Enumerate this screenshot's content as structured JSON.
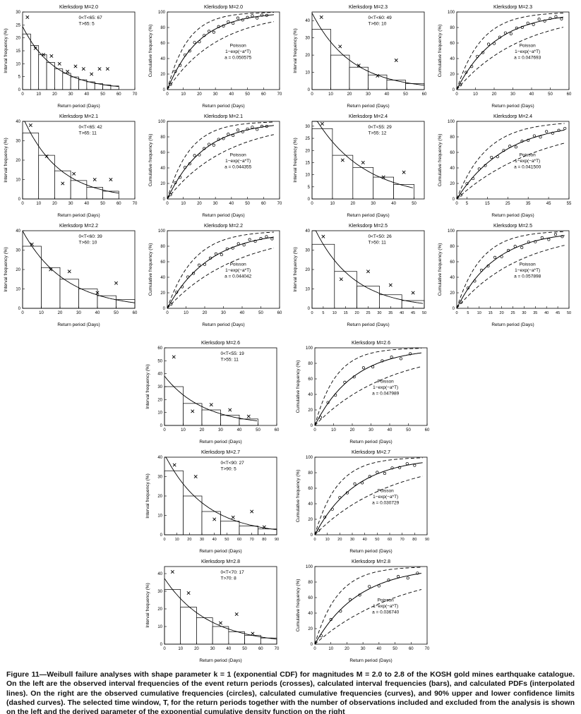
{
  "page": {
    "background": "#ffffff",
    "axis_color": "#000000"
  },
  "caption": {
    "text": "Figure 11—Weibull failure analyses with shape parameter k = 1 (exponential CDF) for magnitudes M = 2.0 to 2.8 of the KOSH gold mines earthquake catalogue. On the left are the observed interval frequencies of the event return periods (crosses), calculated interval frequencies (bars), and calculated PDFs (interpolated lines). On the right are the observed cumulative frequencies (circles), calculated cumulative frequencies (curves), and 90% upper and lower confidence limits (dashed curves). The selected time window, T, for the return periods together with the number of observations included and excluded from the analysis is shown on the left and the derived parameter of the exponential cumulative density function on the right"
  },
  "style": {
    "circle_jitter": [
      -3,
      1,
      -2,
      2,
      -1,
      3,
      -2,
      1,
      2,
      -3,
      1,
      -1,
      2,
      -2,
      3,
      -1,
      1,
      2,
      -2,
      1,
      0
    ]
  },
  "chart_data": [
    {
      "type": "bar",
      "kind": "interval",
      "title": "Klerksdorp M=2.0",
      "xlabel": "Return period (Days)",
      "ylabel": "Interval frequency (%)",
      "xlim": [
        0,
        70
      ],
      "ylim": [
        0,
        30
      ],
      "xticks": [
        0,
        10,
        20,
        30,
        40,
        50,
        60,
        70
      ],
      "yticks": [
        0,
        5,
        10,
        15,
        20,
        25,
        30
      ],
      "annotation": [
        "0<T<65: 67",
        "T>65:  5"
      ],
      "bin_width": 5,
      "bars": [
        21.5,
        17,
        13.5,
        10.5,
        8,
        6.3,
        4.9,
        3.8,
        3,
        2.3,
        1.8,
        1.4
      ],
      "crosses": [
        [
          3,
          28
        ],
        [
          8,
          16
        ],
        [
          13,
          13.5
        ],
        [
          18,
          13
        ],
        [
          23,
          10
        ],
        [
          28,
          7
        ],
        [
          33,
          9
        ],
        [
          38,
          8
        ],
        [
          43,
          6
        ],
        [
          48,
          8
        ],
        [
          53,
          8
        ]
      ],
      "a": 0.050575
    },
    {
      "type": "line",
      "kind": "cumulative",
      "title": "Klerksdorp M=2.0",
      "xlabel": "Return period (Days)",
      "ylabel": "Cumulative frequency (%)",
      "xlim": [
        0,
        70
      ],
      "ylim": [
        0,
        100
      ],
      "xticks": [
        0,
        10,
        20,
        30,
        40,
        50,
        60,
        70
      ],
      "yticks": [
        0,
        20,
        40,
        60,
        80,
        100
      ],
      "label_lines": [
        "Poisson",
        "1−exp(−a*T)",
        "a = 0.050575"
      ],
      "a": 0.050575,
      "conf": [
        1.55,
        0.62
      ],
      "circles_x": [
        2,
        5,
        8,
        11,
        14,
        17,
        20,
        23,
        26,
        29,
        32,
        35,
        38,
        41,
        44,
        47,
        50,
        53,
        56,
        59,
        62
      ]
    },
    {
      "type": "bar",
      "kind": "interval",
      "title": "Klerksdorp M=2.3",
      "xlabel": "Return period (Days)",
      "ylabel": "Interval frequency (%)",
      "xlim": [
        0,
        60
      ],
      "ylim": [
        0,
        45
      ],
      "xticks": [
        0,
        10,
        20,
        30,
        40,
        50,
        60
      ],
      "yticks": [
        0,
        10,
        20,
        30,
        40
      ],
      "annotation": [
        "0<T<60: 49",
        "T>60: 10"
      ],
      "bin_width": 10,
      "bars": [
        35,
        20,
        13,
        8.5,
        5.5,
        3.5
      ],
      "crosses": [
        [
          5,
          42
        ],
        [
          15,
          25
        ],
        [
          25,
          14
        ],
        [
          35,
          8
        ],
        [
          45,
          17
        ]
      ],
      "a": 0.047693
    },
    {
      "type": "line",
      "kind": "cumulative",
      "title": "Klerksdorp M=2.3",
      "xlabel": "Return period (Days)",
      "ylabel": "Cumulative frequency (%)",
      "xlim": [
        0,
        60
      ],
      "ylim": [
        0,
        100
      ],
      "xticks": [
        0,
        10,
        20,
        30,
        40,
        50,
        60
      ],
      "yticks": [
        0,
        20,
        40,
        60,
        80,
        100
      ],
      "label_lines": [
        "Poisson",
        "1−exp(−a*T)",
        "a = 0.047693"
      ],
      "a": 0.047693,
      "conf": [
        1.6,
        0.6
      ],
      "circles_x": [
        2,
        5,
        8,
        11,
        14,
        17,
        20,
        23,
        26,
        29,
        32,
        35,
        38,
        41,
        44,
        47,
        50,
        53,
        56
      ]
    },
    {
      "type": "bar",
      "kind": "interval",
      "title": "Klerksdorp M=2.1",
      "xlabel": "Return period (Days)",
      "ylabel": "Interval frequency (%)",
      "xlim": [
        0,
        70
      ],
      "ylim": [
        0,
        40
      ],
      "xticks": [
        0,
        10,
        20,
        30,
        40,
        50,
        60,
        70
      ],
      "yticks": [
        0,
        10,
        20,
        30,
        40
      ],
      "annotation": [
        "0<T<65: 42",
        "T>65: 11"
      ],
      "bin_width": 10,
      "bars": [
        34,
        22.5,
        14.5,
        9.5,
        6,
        4
      ],
      "crosses": [
        [
          5,
          38
        ],
        [
          15,
          22
        ],
        [
          25,
          8
        ],
        [
          32,
          13
        ],
        [
          45,
          10
        ],
        [
          55,
          10
        ]
      ],
      "a": 0.044355
    },
    {
      "type": "line",
      "kind": "cumulative",
      "title": "Klerksdorp M=2.1",
      "xlabel": "Return period (Days)",
      "ylabel": "Cumulative frequency (%)",
      "xlim": [
        0,
        70
      ],
      "ylim": [
        0,
        100
      ],
      "xticks": [
        0,
        10,
        20,
        30,
        40,
        50,
        60,
        70
      ],
      "yticks": [
        0,
        20,
        40,
        60,
        80,
        100
      ],
      "label_lines": [
        "Poisson",
        "1−exp(−a*T)",
        "a = 0.044355"
      ],
      "a": 0.044355,
      "conf": [
        1.6,
        0.6
      ],
      "circles_x": [
        2,
        5,
        8,
        11,
        14,
        17,
        20,
        23,
        26,
        29,
        32,
        35,
        38,
        41,
        44,
        47,
        50,
        53,
        56,
        59,
        62
      ]
    },
    {
      "type": "bar",
      "kind": "interval",
      "title": "Klerksdorp M=2.4",
      "xlabel": "Return period (Days)",
      "ylabel": "Interval frequency (%)",
      "xlim": [
        0,
        55
      ],
      "ylim": [
        0,
        32
      ],
      "xticks": [
        0,
        10,
        20,
        30,
        40,
        50
      ],
      "yticks": [
        0,
        5,
        10,
        15,
        20,
        25,
        30
      ],
      "annotation": [
        "0<T<55: 29",
        "T>55: 12"
      ],
      "bin_width": 10,
      "bars": [
        29,
        18,
        13,
        9,
        6
      ],
      "crosses": [
        [
          5,
          31
        ],
        [
          15,
          16
        ],
        [
          25,
          15
        ],
        [
          35,
          9
        ],
        [
          45,
          11
        ]
      ],
      "a": 0.0415
    },
    {
      "type": "line",
      "kind": "cumulative",
      "title": "Klerksdorp M=2.4",
      "xlabel": "Return period (Days)",
      "ylabel": "Cumulative frequency (%)",
      "xlim": [
        0,
        55
      ],
      "ylim": [
        0,
        100
      ],
      "xticks": [
        0,
        5,
        15,
        25,
        35,
        45,
        55
      ],
      "yticks": [
        0,
        20,
        40,
        60,
        80,
        100
      ],
      "label_lines": [
        "Poisson",
        "1−exp(−a*T)",
        "a = 0.041500"
      ],
      "a": 0.0415,
      "conf": [
        1.65,
        0.58
      ],
      "circles_x": [
        2,
        5,
        8,
        11,
        14,
        17,
        20,
        23,
        26,
        29,
        32,
        35,
        38,
        41,
        44,
        47,
        50,
        53
      ]
    },
    {
      "type": "bar",
      "kind": "interval",
      "title": "Klerksdorp M=2.2",
      "xlabel": "Return period (Days)",
      "ylabel": "Interval frequency (%)",
      "xlim": [
        0,
        60
      ],
      "ylim": [
        0,
        40
      ],
      "xticks": [
        0,
        10,
        20,
        30,
        40,
        50,
        60
      ],
      "yticks": [
        0,
        10,
        20,
        30,
        40
      ],
      "annotation": [
        "0<T<60: 39",
        "T>60: 10"
      ],
      "bin_width": 10,
      "bars": [
        32,
        21,
        15,
        10,
        6.5,
        4.5
      ],
      "crosses": [
        [
          5,
          33
        ],
        [
          15,
          20
        ],
        [
          25,
          19
        ],
        [
          40,
          8
        ],
        [
          50,
          13
        ]
      ],
      "a": 0.044042
    },
    {
      "type": "line",
      "kind": "cumulative",
      "title": "Klerksdorp M=2.2",
      "xlabel": "Return period (Days)",
      "ylabel": "Cumulative frequency (%)",
      "xlim": [
        0,
        60
      ],
      "ylim": [
        0,
        100
      ],
      "xticks": [
        0,
        10,
        20,
        30,
        40,
        50,
        60
      ],
      "yticks": [
        0,
        20,
        40,
        60,
        80,
        100
      ],
      "label_lines": [
        "Poisson",
        "1−exp(−a*T)",
        "a = 0.044042"
      ],
      "a": 0.044042,
      "conf": [
        1.6,
        0.6
      ],
      "circles_x": [
        2,
        5,
        8,
        11,
        14,
        17,
        20,
        23,
        26,
        29,
        32,
        35,
        38,
        41,
        44,
        47,
        50,
        53,
        56
      ]
    },
    {
      "type": "bar",
      "kind": "interval",
      "title": "Klerksdorp M=2.5",
      "xlabel": "Return period (Days)",
      "ylabel": "Interval frequency (%)",
      "xlim": [
        0,
        50
      ],
      "ylim": [
        0,
        40
      ],
      "xticks": [
        0,
        5,
        10,
        15,
        20,
        25,
        30,
        35,
        40,
        45,
        50
      ],
      "yticks": [
        0,
        10,
        20,
        30,
        40
      ],
      "annotation": [
        "0<T<50: 26",
        "T>50: 11"
      ],
      "bin_width": 10,
      "bars": [
        33,
        19,
        11.5,
        7,
        4
      ],
      "crosses": [
        [
          5,
          37
        ],
        [
          13,
          15
        ],
        [
          25,
          19
        ],
        [
          35,
          12
        ],
        [
          45,
          8
        ]
      ],
      "a": 0.057898
    },
    {
      "type": "line",
      "kind": "cumulative",
      "title": "Klerksdorp M=2.5",
      "xlabel": "Return period (Days)",
      "ylabel": "Cumulative frequency (%)",
      "xlim": [
        0,
        50
      ],
      "ylim": [
        0,
        100
      ],
      "xticks": [
        0,
        5,
        10,
        15,
        20,
        25,
        30,
        35,
        40,
        45,
        50
      ],
      "yticks": [
        0,
        20,
        40,
        60,
        80,
        100
      ],
      "label_lines": [
        "Poisson",
        "1−exp(−a*T)",
        "a = 0.057898"
      ],
      "a": 0.057898,
      "conf": [
        1.6,
        0.6
      ],
      "circles_x": [
        2,
        5,
        8,
        11,
        14,
        17,
        20,
        23,
        26,
        29,
        32,
        35,
        38,
        41,
        44,
        47
      ]
    },
    {
      "type": "bar",
      "kind": "interval",
      "title": "Klerksdorp M=2.6",
      "xlabel": "Return period (Days)",
      "ylabel": "Interval frequency (%)",
      "xlim": [
        0,
        60
      ],
      "ylim": [
        0,
        60
      ],
      "xticks": [
        0,
        10,
        20,
        30,
        40,
        50,
        60
      ],
      "yticks": [
        0,
        10,
        20,
        30,
        40,
        50,
        60
      ],
      "annotation": [
        "0<T<55: 19",
        "T>55: 11"
      ],
      "bin_width": 10,
      "bars": [
        30,
        17,
        12,
        8,
        5
      ],
      "crosses": [
        [
          5,
          53
        ],
        [
          15,
          11
        ],
        [
          25,
          16
        ],
        [
          35,
          12
        ],
        [
          45,
          7
        ]
      ],
      "a": 0.047989
    },
    {
      "type": "line",
      "kind": "cumulative",
      "title": "Klerksdorp M=2.6",
      "xlabel": "Return period (Days)",
      "ylabel": "Cumulative frequency (%)",
      "xlim": [
        0,
        60
      ],
      "ylim": [
        0,
        100
      ],
      "xticks": [
        0,
        10,
        20,
        30,
        40,
        50,
        60
      ],
      "yticks": [
        0,
        20,
        40,
        60,
        80,
        100
      ],
      "label_lines": [
        "Poisson",
        "1−exp(−a*T)",
        "a = 0.047989"
      ],
      "a": 0.047989,
      "conf": [
        1.85,
        0.52
      ],
      "circles_x": [
        3,
        7,
        11,
        16,
        21,
        26,
        31,
        36,
        41,
        46,
        51
      ]
    },
    {
      "type": "bar",
      "kind": "interval",
      "title": "Klerksdorp M=2.7",
      "xlabel": "Return period (Days)",
      "ylabel": "Interval frequency (%)",
      "xlim": [
        0,
        90
      ],
      "ylim": [
        0,
        40
      ],
      "xticks": [
        0,
        10,
        20,
        30,
        40,
        50,
        60,
        70,
        80,
        90
      ],
      "yticks": [
        0,
        10,
        20,
        30,
        40
      ],
      "annotation": [
        "0<T<90: 27",
        "T>90:  5"
      ],
      "bin_width": 15,
      "bars": [
        33,
        20,
        12,
        7,
        4.5,
        3
      ],
      "crosses": [
        [
          8,
          36
        ],
        [
          25,
          30
        ],
        [
          40,
          8
        ],
        [
          55,
          9
        ],
        [
          70,
          12
        ],
        [
          80,
          4
        ]
      ],
      "a": 0.030729
    },
    {
      "type": "line",
      "kind": "cumulative",
      "title": "Klerksdorp M=2.7",
      "xlabel": "Return period (Days)",
      "ylabel": "Cumulative frequency (%)",
      "xlim": [
        0,
        90
      ],
      "ylim": [
        0,
        100
      ],
      "xticks": [
        0,
        10,
        20,
        30,
        40,
        50,
        60,
        70,
        80,
        90
      ],
      "yticks": [
        0,
        20,
        40,
        60,
        80,
        100
      ],
      "label_lines": [
        "Poisson",
        "1−exp(−a*T)",
        "a = 0.030729"
      ],
      "a": 0.030729,
      "conf": [
        1.8,
        0.53
      ],
      "circles_x": [
        3,
        8,
        14,
        20,
        26,
        32,
        38,
        44,
        50,
        56,
        62,
        68,
        74,
        80
      ]
    },
    {
      "type": "bar",
      "kind": "interval",
      "title": "Klerksdorp M=2.8",
      "xlabel": "Return period (Days)",
      "ylabel": "Interval frequency (%)",
      "xlim": [
        0,
        70
      ],
      "ylim": [
        0,
        44
      ],
      "xticks": [
        0,
        10,
        20,
        30,
        40,
        50,
        60,
        70
      ],
      "yticks": [
        0,
        10,
        20,
        30,
        40
      ],
      "annotation": [
        "0<T<70: 17",
        "T>70:  8"
      ],
      "bin_width": 10,
      "bars": [
        31,
        21,
        15,
        10,
        7,
        5,
        3.5
      ],
      "crosses": [
        [
          5,
          41
        ],
        [
          15,
          29
        ],
        [
          35,
          12
        ],
        [
          45,
          17
        ],
        [
          55,
          6
        ]
      ],
      "a": 0.03674
    },
    {
      "type": "line",
      "kind": "cumulative",
      "title": "Klerksdorp M=2.8",
      "xlabel": "Return period (Days)",
      "ylabel": "Cumulative frequency (%)",
      "xlim": [
        0,
        70
      ],
      "ylim": [
        0,
        100
      ],
      "xticks": [
        0,
        10,
        20,
        30,
        40,
        50,
        60,
        70
      ],
      "yticks": [
        0,
        20,
        40,
        60,
        80,
        100
      ],
      "label_lines": [
        "Poisson",
        "1−exp(−a*T)",
        "a = 0.036740"
      ],
      "a": 0.03674,
      "conf": [
        1.9,
        0.5
      ],
      "circles_x": [
        4,
        10,
        16,
        22,
        28,
        34,
        40,
        46,
        52,
        58,
        64
      ]
    }
  ]
}
